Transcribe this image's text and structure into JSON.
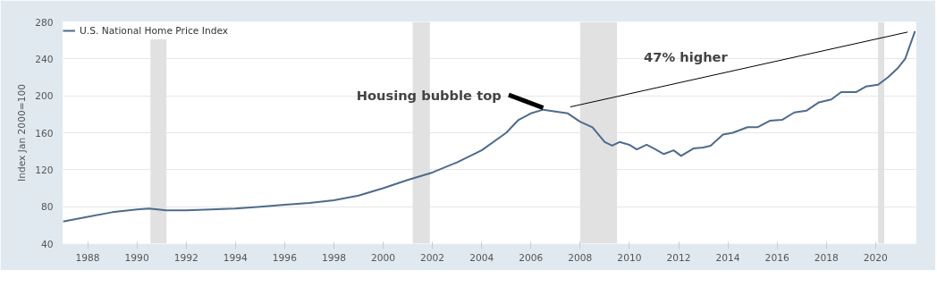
{
  "chart_data": {
    "type": "line",
    "ylabel": "Index Jan 2000=100",
    "x": [
      1987.0,
      1988,
      1989,
      1990,
      1990.5,
      1991.2,
      1992,
      1993,
      1994,
      1995,
      1996,
      1997,
      1998,
      1999,
      2000,
      2001,
      2002,
      2003,
      2004,
      2005,
      2005.5,
      2006,
      2006.5,
      2007,
      2007.5,
      2008,
      2008.5,
      2009,
      2009.3,
      2009.6,
      2010,
      2010.3,
      2010.7,
      2011,
      2011.4,
      2011.8,
      2012.1,
      2012.6,
      2013,
      2013.3,
      2013.8,
      2014.2,
      2014.8,
      2015.2,
      2015.7,
      2016.2,
      2016.7,
      2017.2,
      2017.7,
      2018.2,
      2018.6,
      2019.2,
      2019.6,
      2020.1,
      2020.5,
      2020.9,
      2021.2,
      2021.4,
      2021.6
    ],
    "series": [
      {
        "name": "U.S. National Home Price Index",
        "color": "#4e6b8c",
        "values": [
          64,
          69,
          74,
          77,
          78,
          76,
          76,
          77,
          78,
          80,
          82,
          84,
          87,
          92,
          100,
          109,
          117,
          128,
          141,
          160,
          174,
          181,
          185,
          183,
          181,
          172,
          166,
          150,
          146,
          150,
          147,
          142,
          147,
          143,
          137,
          141,
          135,
          143,
          144,
          146,
          158,
          160,
          166,
          166,
          173,
          174,
          182,
          184,
          193,
          196,
          204,
          204,
          210,
          212,
          220,
          230,
          240,
          255,
          270
        ]
      },
      {
        "type": "line",
        "color": "#000000",
        "x": [
          2007.6,
          2021.3
        ],
        "values": [
          188,
          269
        ]
      }
    ],
    "xlim": [
      1987.0,
      2021.64
    ],
    "xticks": [
      1988,
      1990,
      1992,
      1994,
      1996,
      1998,
      2000,
      2002,
      2004,
      2006,
      2008,
      2010,
      2012,
      2014,
      2016,
      2018,
      2020
    ],
    "ylim": [
      40,
      280
    ],
    "yticks": [
      40,
      80,
      120,
      160,
      200,
      240,
      280
    ],
    "bands": [
      {
        "axis": "x",
        "from": 1990.55,
        "to": 1991.2,
        "color": "#e1e1e1"
      },
      {
        "axis": "x",
        "from": 2001.2,
        "to": 2001.9,
        "color": "#e1e1e1"
      },
      {
        "axis": "x",
        "from": 2008.0,
        "to": 2009.5,
        "color": "#e1e1e1"
      },
      {
        "axis": "x",
        "from": 2020.1,
        "to": 2020.35,
        "color": "#e1e1e1"
      }
    ],
    "annotations": [
      {
        "text": "Housing bubble top",
        "x": 2006.6,
        "y": 185
      },
      "47% higher"
    ],
    "grid": "y",
    "legend": "top left",
    "line_style": "solid",
    "marker": "none"
  }
}
